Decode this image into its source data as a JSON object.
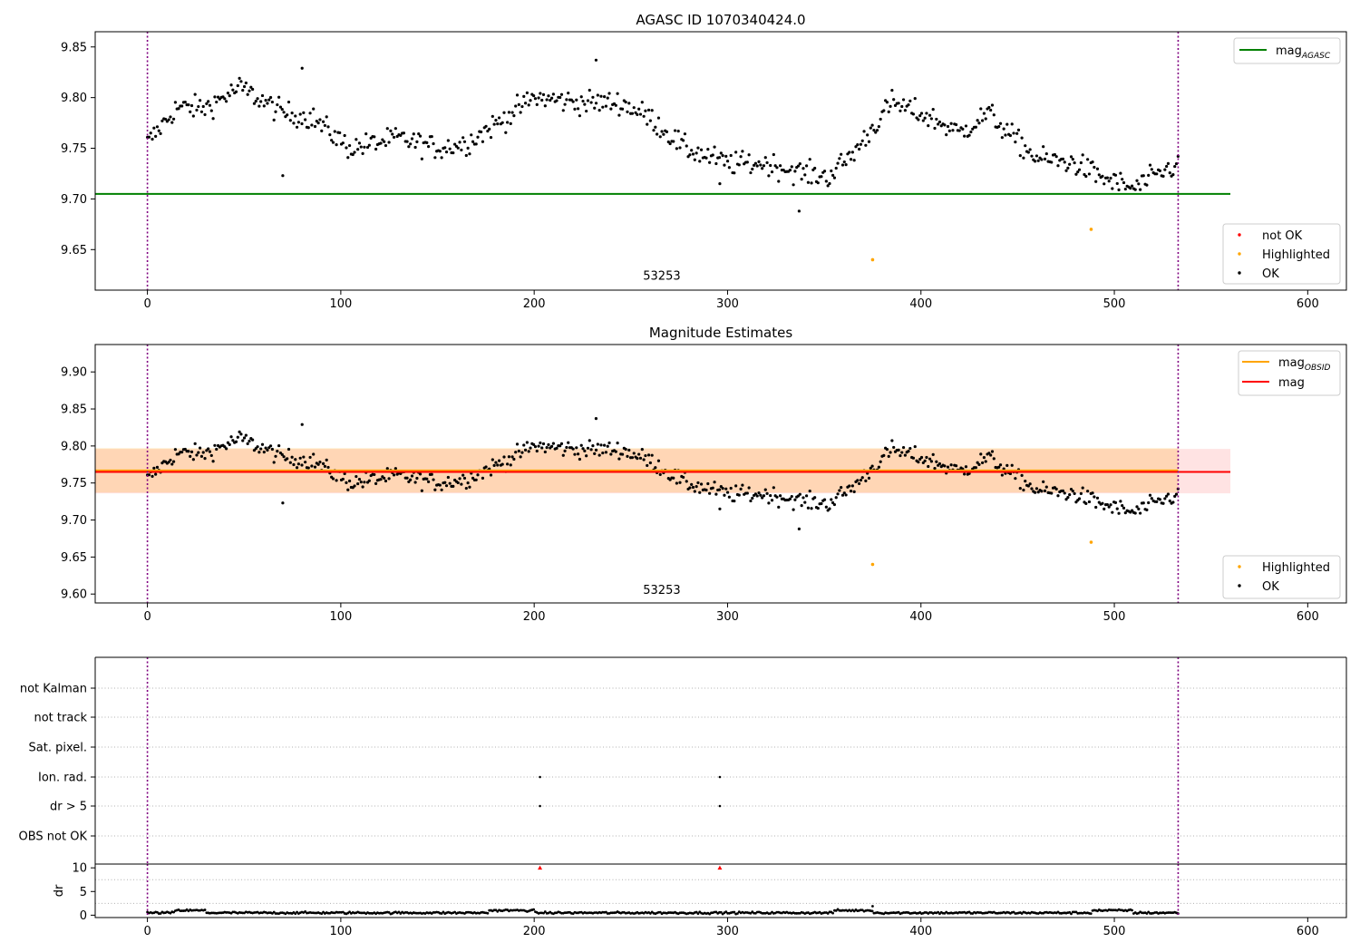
{
  "chart_data": [
    {
      "type": "scatter",
      "title": "AGASC ID 1070340424.0",
      "xlim": [
        -27,
        620
      ],
      "ylim": [
        9.61,
        9.865
      ],
      "xticks": [
        0,
        100,
        200,
        300,
        400,
        500,
        600
      ],
      "yticks": [
        9.65,
        9.7,
        9.75,
        9.8,
        9.85
      ],
      "vlines": [
        0,
        533
      ],
      "hline": {
        "name": "mag",
        "subscript": "AGASC",
        "y": 9.705,
        "x_range": [
          -27,
          560
        ],
        "color": "#008000"
      },
      "annotation": {
        "text": "53253",
        "x": 266,
        "y": 9.624
      },
      "legend_top": [
        {
          "name": "mag",
          "subscript": "AGASC",
          "color": "#008000",
          "marker": "line"
        }
      ],
      "legend_bottom": [
        {
          "name": "not OK",
          "color": "#ff0000",
          "marker": "dot"
        },
        {
          "name": "Highlighted",
          "color": "#ffa500",
          "marker": "dot"
        },
        {
          "name": "OK",
          "color": "#000000",
          "marker": "dot"
        }
      ],
      "highlighted_points": [
        [
          375,
          9.64
        ],
        [
          488,
          9.67
        ]
      ]
    },
    {
      "type": "scatter",
      "title": "Magnitude Estimates",
      "xlim": [
        -27,
        620
      ],
      "ylim": [
        9.588,
        9.937
      ],
      "xticks": [
        0,
        100,
        200,
        300,
        400,
        500,
        600
      ],
      "yticks": [
        9.6,
        9.65,
        9.7,
        9.75,
        9.8,
        9.85,
        9.9
      ],
      "vlines": [
        0,
        533
      ],
      "lines": [
        {
          "name": "mag",
          "subscript": "OBSID",
          "y": 9.767,
          "color": "#ffa500",
          "x_range": [
            -27,
            533
          ]
        },
        {
          "name": "mag",
          "subscript": "",
          "y": 9.765,
          "color": "#ff0000",
          "x_range": [
            -27,
            560
          ]
        }
      ],
      "bands": [
        {
          "y": [
            9.736,
            9.796
          ],
          "x_range": [
            -27,
            560
          ],
          "color": "#ff0000",
          "opacity": 0.11
        },
        {
          "y": [
            9.737,
            9.797
          ],
          "x_range": [
            -27,
            533
          ],
          "color": "#ffa500",
          "opacity": 0.2
        }
      ],
      "annotation": {
        "text": "53253",
        "x": 266,
        "y": 9.605
      },
      "legend_top": [
        {
          "name": "mag",
          "subscript": "OBSID",
          "color": "#ffa500",
          "marker": "line"
        },
        {
          "name": "mag",
          "subscript": "",
          "color": "#ff0000",
          "marker": "line"
        }
      ],
      "legend_bottom": [
        {
          "name": "Highlighted",
          "color": "#ffa500",
          "marker": "dot"
        },
        {
          "name": "OK",
          "color": "#000000",
          "marker": "dot"
        }
      ],
      "highlighted_points": [
        [
          375,
          9.64
        ],
        [
          488,
          9.67
        ]
      ]
    },
    {
      "type": "scatter",
      "title": "",
      "xlim": [
        -27,
        620
      ],
      "categories": [
        "not Kalman",
        "not track",
        "Sat. pixel.",
        "Ion. rad.",
        "dr > 5",
        "OBS not OK"
      ],
      "vlines": [
        0,
        533
      ],
      "flag_points": [
        {
          "category": "Ion. rad.",
          "x": [
            203,
            296
          ]
        },
        {
          "category": "dr > 5",
          "x": [
            203,
            296
          ]
        }
      ]
    },
    {
      "type": "scatter",
      "title": "",
      "ylabel": "dr",
      "xlim": [
        -27,
        620
      ],
      "ylim": [
        -0.5,
        10.8
      ],
      "xticks": [
        0,
        100,
        200,
        300,
        400,
        500,
        600
      ],
      "yticks": [
        0,
        5,
        10
      ],
      "vlines": [
        0,
        533
      ],
      "clipped_points": [
        [
          203,
          10
        ],
        [
          296,
          10
        ]
      ]
    }
  ],
  "colors": {
    "ok": "#000000",
    "highlighted": "#ffa500",
    "not_ok": "#ff0000",
    "vline": "#800080",
    "grid": "#b0b0b0"
  }
}
